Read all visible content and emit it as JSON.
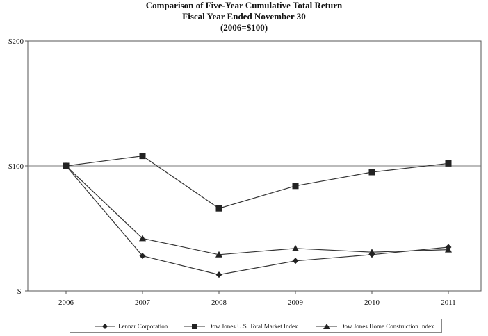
{
  "title_lines": [
    "Comparison of Five-Year Cumulative Total Return",
    "Fiscal Year Ended November 30",
    "(2006=$100)"
  ],
  "chart_data": {
    "type": "line",
    "title": "Comparison of Five-Year Cumulative Total Return Fiscal Year Ended November 30 (2006=$100)",
    "categories": [
      "2006",
      "2007",
      "2008",
      "2009",
      "2010",
      "2011"
    ],
    "ylim": [
      0,
      200
    ],
    "yticks": [
      {
        "value": 0,
        "label": "$-"
      },
      {
        "value": 100,
        "label": "$100"
      },
      {
        "value": 200,
        "label": "$200"
      }
    ],
    "reference_line": 100,
    "grid": false,
    "legend_position": "bottom",
    "series": [
      {
        "name": "Lennar Corporation",
        "marker": "diamond",
        "values": [
          100,
          28,
          13,
          24,
          29,
          35
        ]
      },
      {
        "name": "Dow Jones U.S. Total Market Index",
        "marker": "square",
        "values": [
          100,
          108,
          66,
          84,
          95,
          102
        ]
      },
      {
        "name": "Dow Jones Home Construction Index",
        "marker": "triangle",
        "values": [
          100,
          42,
          29,
          34,
          31,
          33
        ]
      }
    ]
  }
}
